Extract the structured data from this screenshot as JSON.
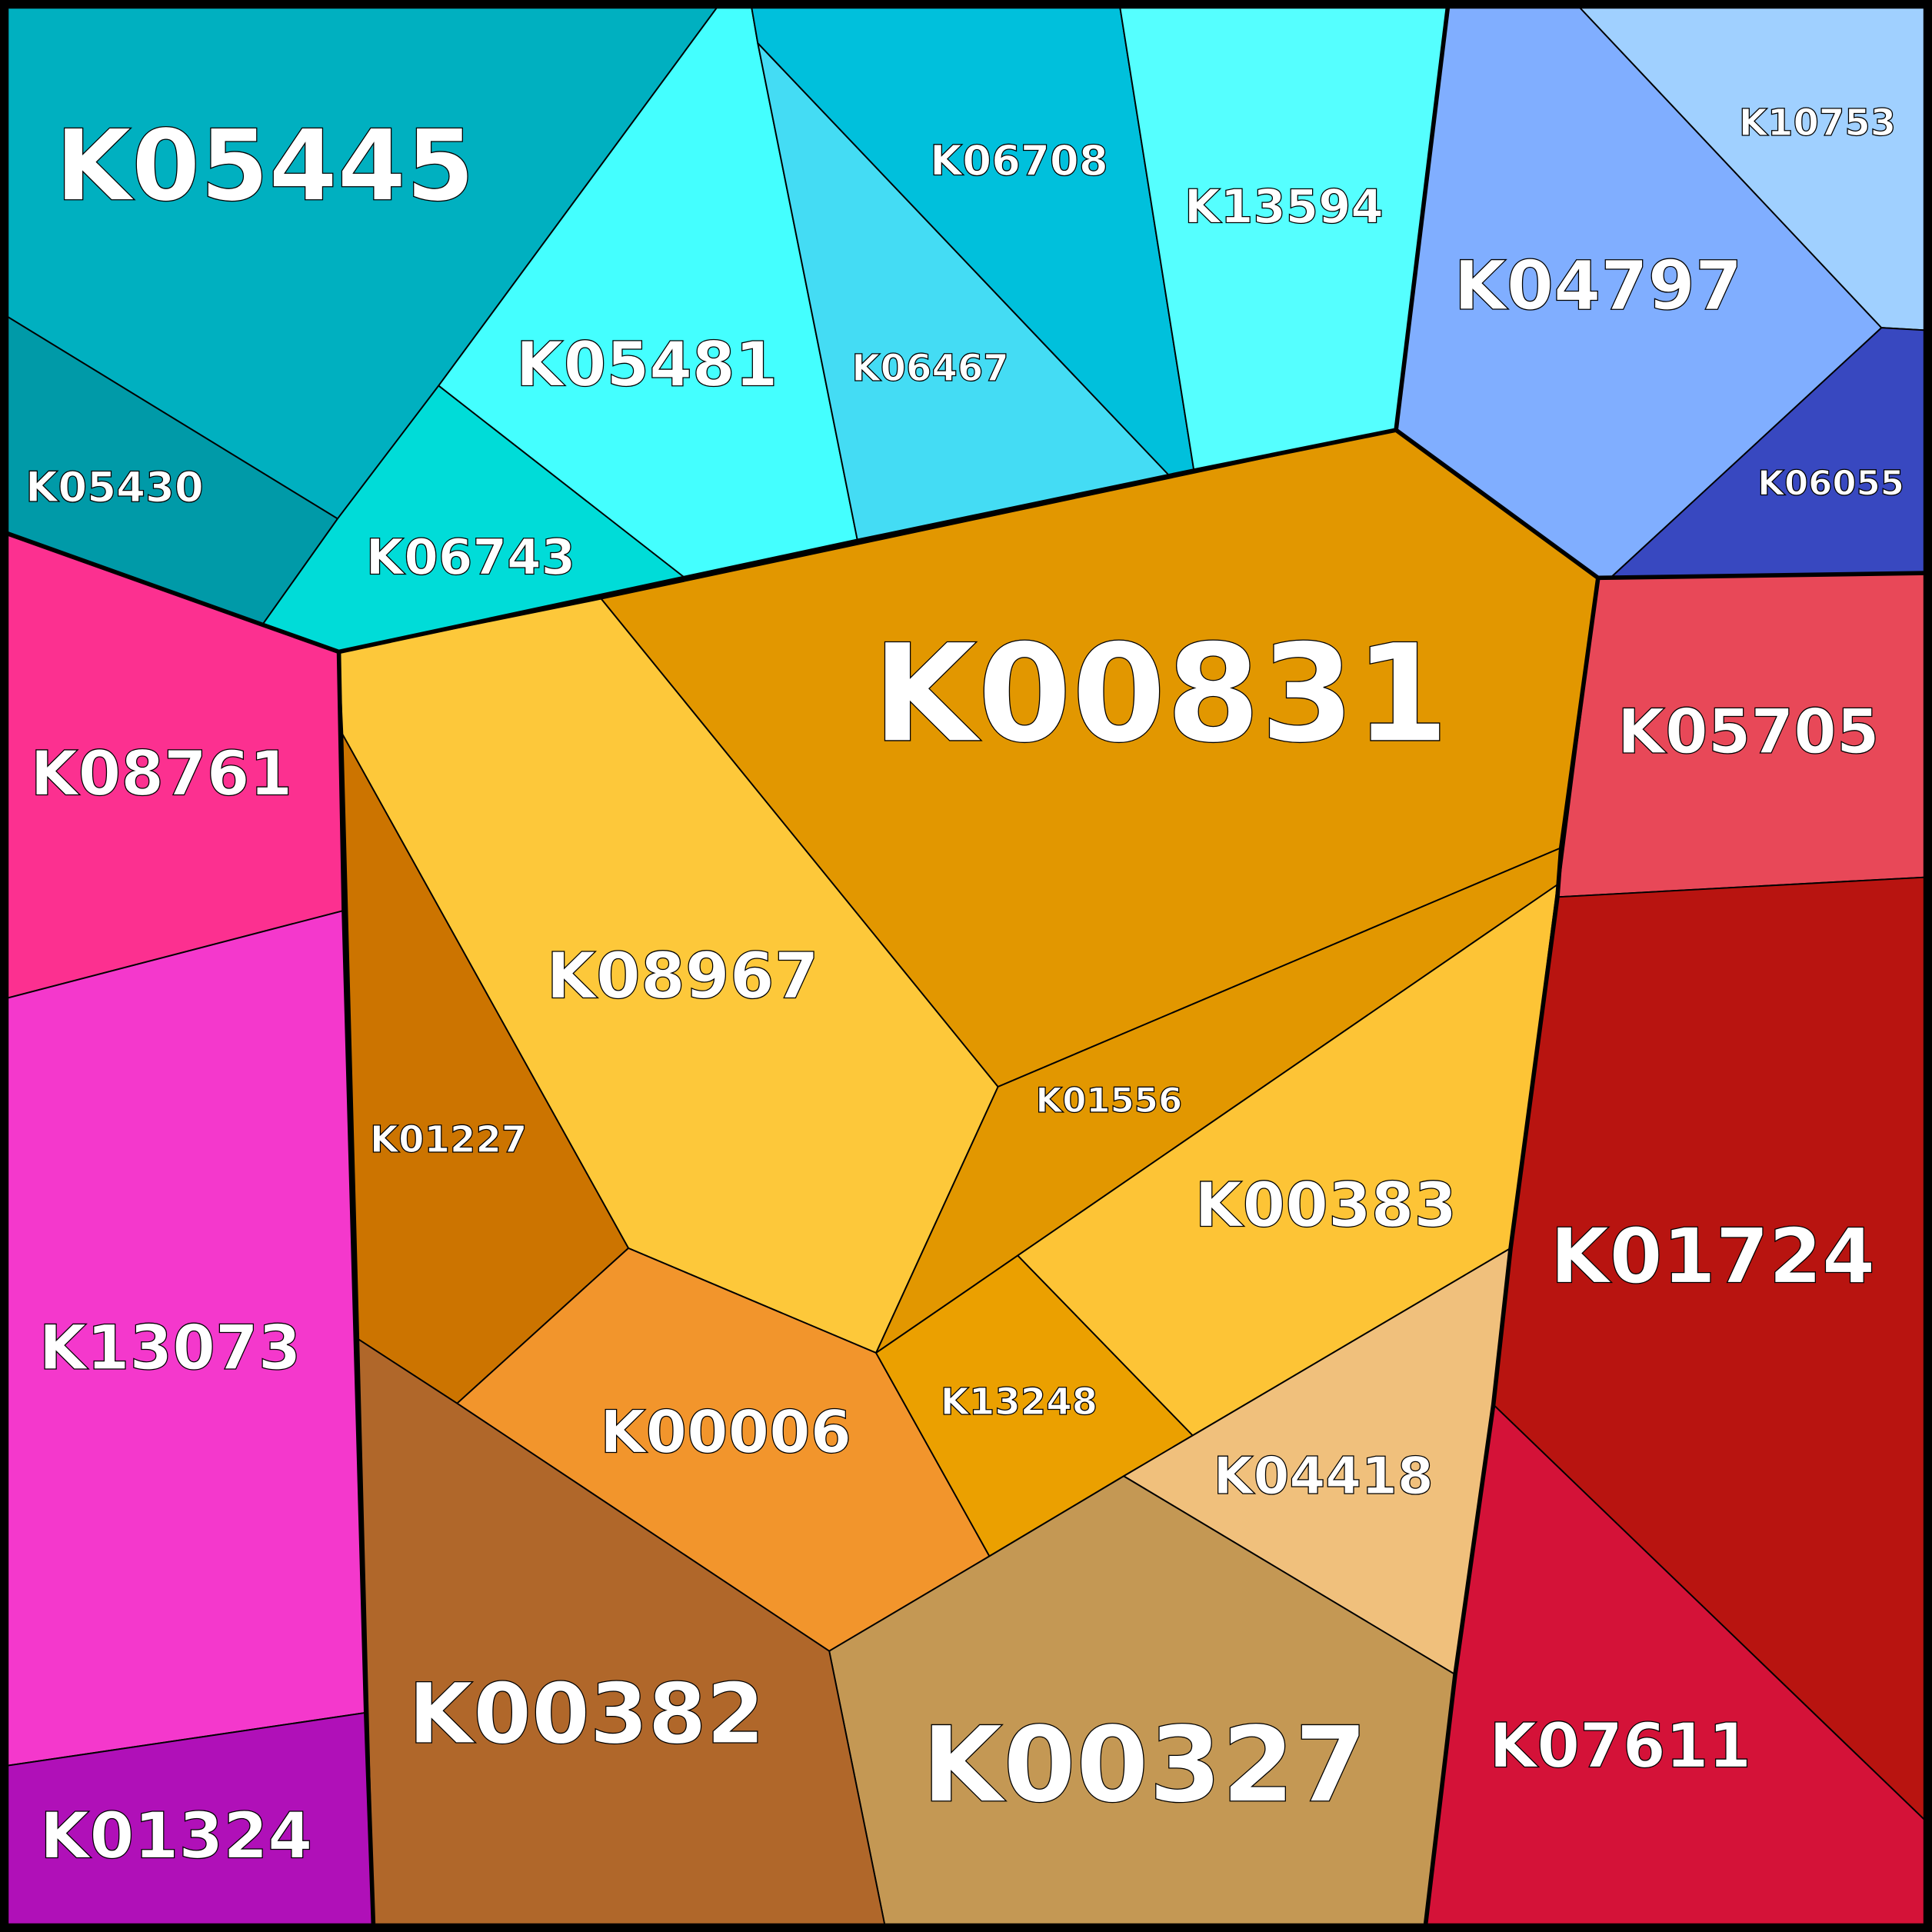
{
  "cells": [
    {
      "label": "K05445"
    },
    {
      "label": "K05430"
    },
    {
      "label": "K06743"
    },
    {
      "label": "K05481"
    },
    {
      "label": "K06467"
    },
    {
      "label": "K06708"
    },
    {
      "label": "K13594"
    },
    {
      "label": "K04797"
    },
    {
      "label": "K10753"
    },
    {
      "label": "K06055"
    },
    {
      "label": "K08761"
    },
    {
      "label": "K13073"
    },
    {
      "label": "K01324"
    },
    {
      "label": "K08967"
    },
    {
      "label": "K00831"
    },
    {
      "label": "K01556"
    },
    {
      "label": "K01227"
    },
    {
      "label": "K00006"
    },
    {
      "label": "K13248"
    },
    {
      "label": "K00383"
    },
    {
      "label": "K04418"
    },
    {
      "label": "K00327"
    },
    {
      "label": "K00382"
    },
    {
      "label": "K05705"
    },
    {
      "label": "K01724"
    },
    {
      "label": "K07611"
    }
  ]
}
